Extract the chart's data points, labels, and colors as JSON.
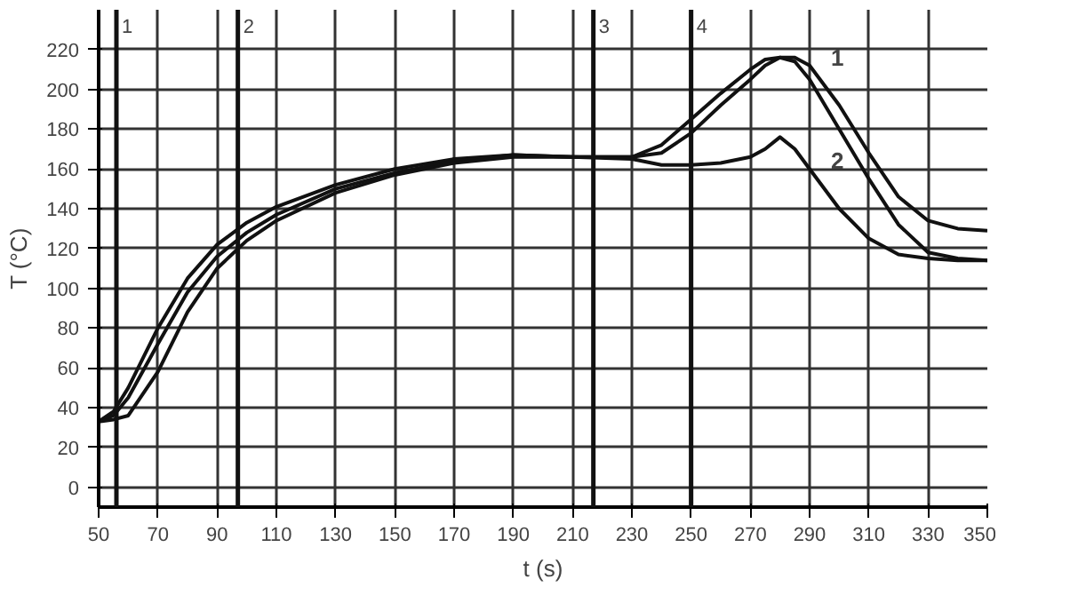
{
  "chart_data": {
    "type": "line",
    "xlabel": "t (s)",
    "ylabel": "T (°C)",
    "x": [
      50,
      55,
      60,
      70,
      80,
      90,
      100,
      110,
      130,
      150,
      170,
      190,
      210,
      230,
      240,
      250,
      260,
      270,
      275,
      280,
      285,
      290,
      300,
      310,
      320,
      330,
      340,
      350
    ],
    "series": [
      {
        "color": "#111111",
        "values": [
          33,
          38,
          50,
          80,
          105,
          122,
          133,
          141,
          152,
          160,
          165,
          167,
          166,
          166,
          172,
          185,
          198,
          210,
          215,
          216,
          214,
          205,
          180,
          155,
          132,
          118,
          115,
          114
        ]
      },
      {
        "name": "1",
        "color": "#111111",
        "values": [
          33,
          36,
          45,
          72,
          98,
          116,
          128,
          137,
          150,
          158,
          164,
          167,
          166,
          166,
          168,
          178,
          192,
          205,
          212,
          216,
          216,
          212,
          192,
          168,
          146,
          134,
          130,
          129
        ]
      },
      {
        "name": "2",
        "color": "#111111",
        "values": [
          33,
          34,
          36,
          58,
          88,
          110,
          124,
          134,
          148,
          157,
          163,
          166,
          166,
          165,
          162,
          162,
          163,
          166,
          170,
          176,
          170,
          160,
          140,
          125,
          117,
          115,
          114,
          114
        ]
      }
    ],
    "xlim": [
      50,
      350
    ],
    "ylim": [
      -10,
      240
    ],
    "xticks": [
      50,
      70,
      90,
      110,
      130,
      150,
      170,
      190,
      210,
      230,
      250,
      270,
      290,
      310,
      330,
      350
    ],
    "yticks": [
      0,
      20,
      40,
      60,
      80,
      100,
      120,
      140,
      160,
      180,
      200,
      220
    ],
    "ref_lines": [
      {
        "axis": "x",
        "value": 56
      },
      {
        "axis": "x",
        "value": 97
      },
      {
        "axis": "x",
        "value": 217
      },
      {
        "axis": "x",
        "value": 250
      }
    ],
    "annotations": [
      {
        "text": "1",
        "x": 56,
        "y": 232
      },
      {
        "text": "2",
        "x": 97,
        "y": 232
      },
      {
        "text": "3",
        "x": 217,
        "y": 232
      },
      {
        "text": "4",
        "x": 250,
        "y": 232
      }
    ],
    "grid": true,
    "marker": "none",
    "line_style": "solid"
  }
}
